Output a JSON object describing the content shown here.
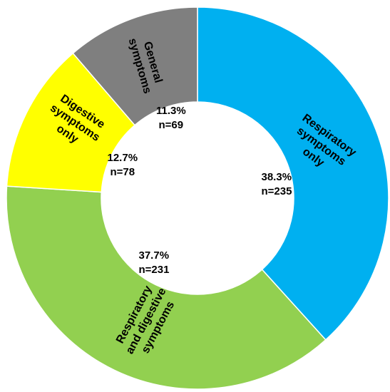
{
  "chart_data": {
    "type": "donut",
    "categories": [
      "Respiratory\nsymptoms\nonly",
      "Respiratory\nand digestive\nsymptoms",
      "Digestive\nsymptoms\nonly",
      "General\nsymptoms"
    ],
    "values": [
      38.3,
      37.7,
      12.7,
      11.3
    ],
    "value_labels": [
      "38.3%",
      "37.7%",
      "12.7%",
      "11.3%"
    ],
    "counts": [
      235,
      231,
      78,
      69
    ],
    "count_labels": [
      "n=235",
      "n=231",
      "n=78",
      "n=69"
    ],
    "colors": [
      "#00b0f0",
      "#92d050",
      "#ffff00",
      "#7f7f7f"
    ]
  }
}
